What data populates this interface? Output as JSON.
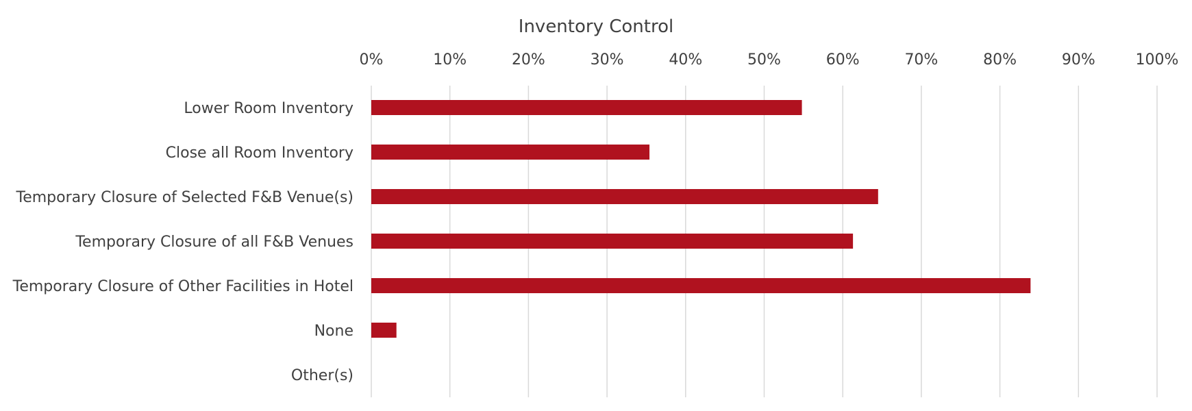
{
  "chart_data": {
    "type": "bar",
    "orientation": "horizontal",
    "title": "Inventory Control",
    "xlabel": "",
    "ylabel": "",
    "xlim": [
      0,
      1
    ],
    "x_ticks": [
      "0%",
      "10%",
      "20%",
      "30%",
      "40%",
      "50%",
      "60%",
      "70%",
      "80%",
      "90%",
      "100%"
    ],
    "x_axis_position": "top",
    "grid": "vertical",
    "categories": [
      "Lower Room Inventory",
      "Close all Room Inventory",
      "Temporary Closure of Selected F&B Venue(s)",
      "Temporary Closure of all F&B Venues",
      "Temporary Closure of Other Facilities in Hotel",
      "None",
      "Other(s)"
    ],
    "values": [
      0.548,
      0.354,
      0.645,
      0.613,
      0.839,
      0.032,
      0.0
    ],
    "bar_color": "#b0121f"
  }
}
